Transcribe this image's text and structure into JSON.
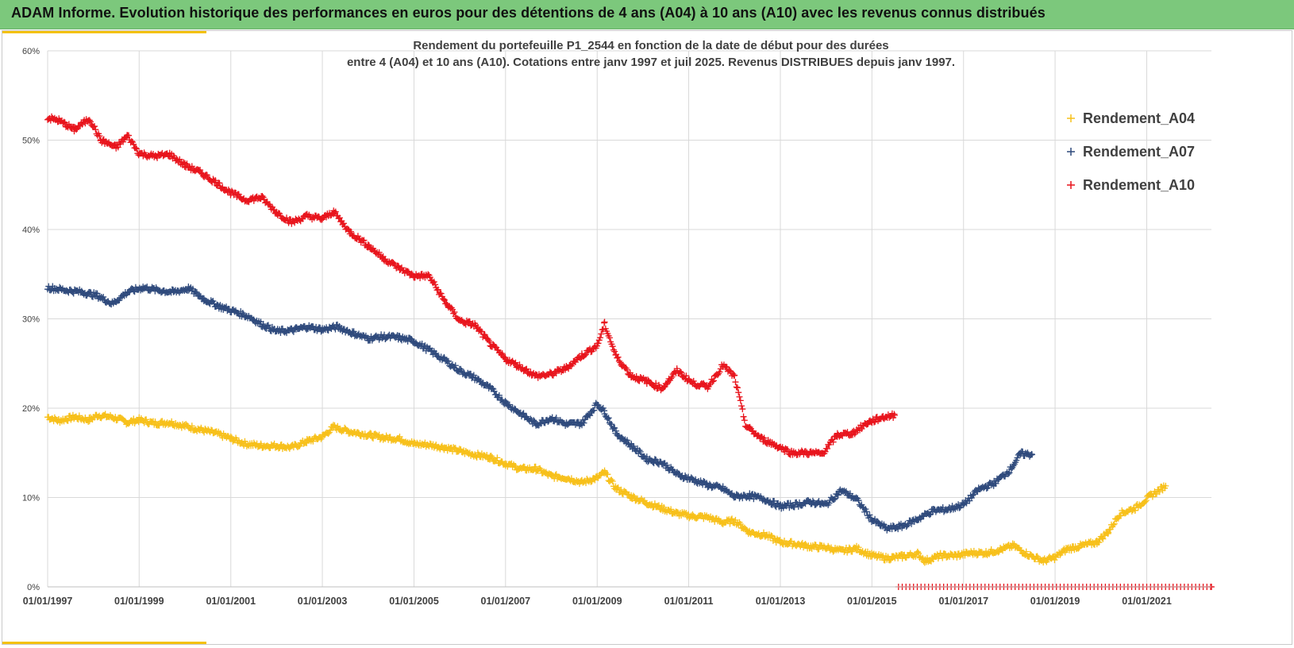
{
  "banner": {
    "title": "ADAM Informe. Evolution historique des performances en euros pour des détentions de 4 ans (A04) à 10 ans (A10) avec les revenus connus distribués"
  },
  "colors": {
    "banner_bg": "#7cc87c",
    "accent_yellow": "#f4c20d",
    "series_a04": "#f7c01a",
    "series_a07": "#2f4a7c",
    "series_a10": "#e8141c",
    "grid": "#d9d9d9",
    "text": "#404040"
  },
  "chart_data": {
    "type": "scatter",
    "marker": "plus",
    "title_line1": "Rendement du portefeuille P1_2544 en fonction de la date de début pour des durées",
    "title_line2": "entre 4 (A04) et 10 ans (A10). Cotations  entre janv 1997 et juil 2025. Revenus DISTRIBUES depuis janv 1997.",
    "xlabel": "",
    "ylabel": "",
    "x_range": [
      "1997-01-01",
      "2022-06-01"
    ],
    "ylim": [
      0,
      60
    ],
    "y_ticks": [
      0,
      10,
      20,
      30,
      40,
      50,
      60
    ],
    "y_tick_labels": [
      "0%",
      "10%",
      "20%",
      "30%",
      "40%",
      "50%",
      "60%"
    ],
    "x_ticks": [
      "1997-01-01",
      "1999-01-01",
      "2001-01-01",
      "2003-01-01",
      "2005-01-01",
      "2007-01-01",
      "2009-01-01",
      "2011-01-01",
      "2013-01-01",
      "2015-01-01",
      "2017-01-01",
      "2019-01-01",
      "2021-01-01"
    ],
    "x_tick_labels": [
      "01/01/1997",
      "01/01/1999",
      "01/01/2001",
      "01/01/2003",
      "01/01/2005",
      "01/01/2007",
      "01/01/2009",
      "01/01/2011",
      "01/01/2013",
      "01/01/2015",
      "01/01/2017",
      "01/01/2019",
      "01/01/2021"
    ],
    "grid": true,
    "legend_position": "right",
    "series": [
      {
        "name": "Rendement_A04",
        "color": "#f7c01a",
        "points": [
          [
            "1997-01-01",
            19.0
          ],
          [
            "1997-04-01",
            18.6
          ],
          [
            "1997-08-01",
            19.0
          ],
          [
            "1997-12-01",
            18.7
          ],
          [
            "1998-02-01",
            19.2
          ],
          [
            "1998-06-01",
            19.0
          ],
          [
            "1998-10-01",
            18.4
          ],
          [
            "1999-01-01",
            18.7
          ],
          [
            "1999-05-01",
            18.3
          ],
          [
            "1999-09-01",
            18.4
          ],
          [
            "2000-01-01",
            18.0
          ],
          [
            "2000-05-01",
            17.6
          ],
          [
            "2000-09-01",
            17.2
          ],
          [
            "2001-01-01",
            16.6
          ],
          [
            "2001-05-01",
            16.0
          ],
          [
            "2001-09-01",
            15.8
          ],
          [
            "2002-01-01",
            15.8
          ],
          [
            "2002-05-01",
            15.6
          ],
          [
            "2002-09-01",
            16.3
          ],
          [
            "2003-01-01",
            16.8
          ],
          [
            "2003-04-01",
            17.9
          ],
          [
            "2003-08-01",
            17.4
          ],
          [
            "2004-01-01",
            17.0
          ],
          [
            "2004-05-01",
            16.7
          ],
          [
            "2004-09-01",
            16.6
          ],
          [
            "2005-01-01",
            16.0
          ],
          [
            "2005-05-01",
            15.9
          ],
          [
            "2005-09-01",
            15.6
          ],
          [
            "2006-01-01",
            15.2
          ],
          [
            "2006-05-01",
            14.8
          ],
          [
            "2006-09-01",
            14.5
          ],
          [
            "2007-01-01",
            13.8
          ],
          [
            "2007-05-01",
            13.2
          ],
          [
            "2007-09-01",
            13.2
          ],
          [
            "2008-01-01",
            12.4
          ],
          [
            "2008-05-01",
            12.2
          ],
          [
            "2008-09-01",
            11.7
          ],
          [
            "2009-01-01",
            12.2
          ],
          [
            "2009-03-01",
            12.8
          ],
          [
            "2009-06-01",
            11.0
          ],
          [
            "2009-10-01",
            10.1
          ],
          [
            "2010-02-01",
            9.4
          ],
          [
            "2010-06-01",
            8.8
          ],
          [
            "2010-10-01",
            8.2
          ],
          [
            "2011-02-01",
            7.9
          ],
          [
            "2011-06-01",
            7.8
          ],
          [
            "2011-10-01",
            7.2
          ],
          [
            "2012-01-01",
            7.4
          ],
          [
            "2012-05-01",
            6.1
          ],
          [
            "2012-09-01",
            5.8
          ],
          [
            "2013-01-01",
            5.0
          ],
          [
            "2013-05-01",
            4.8
          ],
          [
            "2013-09-01",
            4.5
          ],
          [
            "2014-01-01",
            4.4
          ],
          [
            "2014-05-01",
            4.0
          ],
          [
            "2014-09-01",
            4.3
          ],
          [
            "2015-01-01",
            3.5
          ],
          [
            "2015-05-01",
            3.2
          ],
          [
            "2015-09-01",
            3.4
          ],
          [
            "2016-01-01",
            3.7
          ],
          [
            "2016-03-01",
            2.9
          ],
          [
            "2016-07-01",
            3.5
          ],
          [
            "2016-11-01",
            3.5
          ],
          [
            "2017-03-01",
            3.8
          ],
          [
            "2017-07-01",
            3.8
          ],
          [
            "2017-11-01",
            4.2
          ],
          [
            "2018-02-01",
            4.6
          ],
          [
            "2018-06-01",
            3.6
          ],
          [
            "2018-10-01",
            2.9
          ],
          [
            "2019-01-01",
            3.3
          ],
          [
            "2019-04-01",
            4.2
          ],
          [
            "2019-08-01",
            4.6
          ],
          [
            "2019-12-01",
            5.0
          ],
          [
            "2020-03-01",
            6.2
          ],
          [
            "2020-06-01",
            8.2
          ],
          [
            "2020-10-01",
            8.8
          ],
          [
            "2021-02-01",
            10.2
          ],
          [
            "2021-06-01",
            11.3
          ]
        ]
      },
      {
        "name": "Rendement_A07",
        "color": "#2f4a7c",
        "points": [
          [
            "1997-01-01",
            33.5
          ],
          [
            "1997-06-01",
            33.2
          ],
          [
            "1997-10-01",
            33.0
          ],
          [
            "1998-02-01",
            32.6
          ],
          [
            "1998-06-01",
            31.7
          ],
          [
            "1998-10-01",
            33.0
          ],
          [
            "1999-02-01",
            33.5
          ],
          [
            "1999-06-01",
            33.2
          ],
          [
            "1999-10-01",
            33.0
          ],
          [
            "2000-02-01",
            33.4
          ],
          [
            "2000-06-01",
            32.2
          ],
          [
            "2000-10-01",
            31.4
          ],
          [
            "2001-02-01",
            30.8
          ],
          [
            "2001-06-01",
            30.2
          ],
          [
            "2001-09-01",
            29.4
          ],
          [
            "2002-01-01",
            28.6
          ],
          [
            "2002-05-01",
            28.7
          ],
          [
            "2002-09-01",
            29.1
          ],
          [
            "2003-01-01",
            28.8
          ],
          [
            "2003-05-01",
            29.1
          ],
          [
            "2003-09-01",
            28.4
          ],
          [
            "2004-01-01",
            27.8
          ],
          [
            "2004-05-01",
            28.0
          ],
          [
            "2004-09-01",
            27.9
          ],
          [
            "2005-01-01",
            27.5
          ],
          [
            "2005-05-01",
            26.5
          ],
          [
            "2005-09-01",
            25.4
          ],
          [
            "2006-01-01",
            24.2
          ],
          [
            "2006-05-01",
            23.4
          ],
          [
            "2006-09-01",
            22.2
          ],
          [
            "2007-01-01",
            20.6
          ],
          [
            "2007-05-01",
            19.4
          ],
          [
            "2007-09-01",
            18.2
          ],
          [
            "2008-01-01",
            18.9
          ],
          [
            "2008-05-01",
            18.2
          ],
          [
            "2008-09-01",
            18.3
          ],
          [
            "2009-01-01",
            20.5
          ],
          [
            "2009-03-01",
            19.6
          ],
          [
            "2009-06-01",
            17.2
          ],
          [
            "2009-10-01",
            15.8
          ],
          [
            "2010-02-01",
            14.3
          ],
          [
            "2010-06-01",
            13.9
          ],
          [
            "2010-10-01",
            12.6
          ],
          [
            "2011-02-01",
            12.0
          ],
          [
            "2011-06-01",
            11.4
          ],
          [
            "2011-10-01",
            11.0
          ],
          [
            "2012-01-01",
            10.1
          ],
          [
            "2012-05-01",
            10.2
          ],
          [
            "2012-09-01",
            9.8
          ],
          [
            "2013-01-01",
            9.0
          ],
          [
            "2013-05-01",
            9.2
          ],
          [
            "2013-09-01",
            9.5
          ],
          [
            "2014-01-01",
            9.2
          ],
          [
            "2014-05-01",
            10.8
          ],
          [
            "2014-09-01",
            9.8
          ],
          [
            "2015-01-01",
            7.5
          ],
          [
            "2015-05-01",
            6.5
          ],
          [
            "2015-09-01",
            6.8
          ],
          [
            "2016-01-01",
            7.6
          ],
          [
            "2016-05-01",
            8.5
          ],
          [
            "2016-09-01",
            8.7
          ],
          [
            "2017-01-01",
            9.2
          ],
          [
            "2017-05-01",
            10.9
          ],
          [
            "2017-09-01",
            11.6
          ],
          [
            "2018-01-01",
            13.0
          ],
          [
            "2018-04-01",
            14.9
          ],
          [
            "2018-07-01",
            14.8
          ]
        ]
      },
      {
        "name": "Rendement_A10",
        "color": "#e8141c",
        "points": [
          [
            "1997-01-01",
            52.5
          ],
          [
            "1997-04-01",
            52.2
          ],
          [
            "1997-08-01",
            51.2
          ],
          [
            "1997-12-01",
            52.4
          ],
          [
            "1998-03-01",
            50.0
          ],
          [
            "1998-07-01",
            49.2
          ],
          [
            "1998-10-01",
            50.5
          ],
          [
            "1999-01-01",
            48.5
          ],
          [
            "1999-05-01",
            48.2
          ],
          [
            "1999-09-01",
            48.4
          ],
          [
            "2000-01-01",
            47.2
          ],
          [
            "2000-05-01",
            46.4
          ],
          [
            "2000-09-01",
            45.3
          ],
          [
            "2001-01-01",
            44.1
          ],
          [
            "2001-05-01",
            43.3
          ],
          [
            "2001-09-01",
            43.6
          ],
          [
            "2002-01-01",
            41.9
          ],
          [
            "2002-05-01",
            40.8
          ],
          [
            "2002-09-01",
            41.5
          ],
          [
            "2003-01-01",
            41.2
          ],
          [
            "2003-04-01",
            42.0
          ],
          [
            "2003-08-01",
            39.8
          ],
          [
            "2004-01-01",
            38.2
          ],
          [
            "2004-05-01",
            36.8
          ],
          [
            "2004-09-01",
            35.7
          ],
          [
            "2005-01-01",
            34.8
          ],
          [
            "2005-05-01",
            34.8
          ],
          [
            "2005-09-01",
            32.0
          ],
          [
            "2006-01-01",
            29.8
          ],
          [
            "2006-05-01",
            29.3
          ],
          [
            "2006-09-01",
            27.2
          ],
          [
            "2007-01-01",
            25.5
          ],
          [
            "2007-05-01",
            24.6
          ],
          [
            "2007-09-01",
            23.6
          ],
          [
            "2008-01-01",
            23.8
          ],
          [
            "2008-05-01",
            24.5
          ],
          [
            "2008-09-01",
            25.9
          ],
          [
            "2009-01-01",
            27.0
          ],
          [
            "2009-03-01",
            29.4
          ],
          [
            "2009-06-01",
            25.8
          ],
          [
            "2009-10-01",
            23.6
          ],
          [
            "2010-02-01",
            23.0
          ],
          [
            "2010-06-01",
            22.2
          ],
          [
            "2010-10-01",
            24.2
          ],
          [
            "2011-02-01",
            22.8
          ],
          [
            "2011-06-01",
            22.4
          ],
          [
            "2011-10-01",
            24.8
          ],
          [
            "2012-01-01",
            23.5
          ],
          [
            "2012-04-01",
            18.0
          ],
          [
            "2012-08-01",
            16.6
          ],
          [
            "2012-12-01",
            15.8
          ],
          [
            "2013-04-01",
            15.0
          ],
          [
            "2013-08-01",
            15.0
          ],
          [
            "2013-12-01",
            14.9
          ],
          [
            "2014-04-01",
            17.0
          ],
          [
            "2014-08-01",
            17.2
          ],
          [
            "2014-12-01",
            18.4
          ],
          [
            "2015-04-01",
            19.0
          ],
          [
            "2015-07-01",
            19.2
          ]
        ]
      },
      {
        "name": "Rendement_A10 (0%)",
        "color": "#e8141c",
        "hidden_from_legend": true,
        "points": [
          [
            "2015-08-01",
            0.0
          ],
          [
            "2022-06-01",
            0.0
          ]
        ],
        "fill_monthly": true
      }
    ]
  }
}
